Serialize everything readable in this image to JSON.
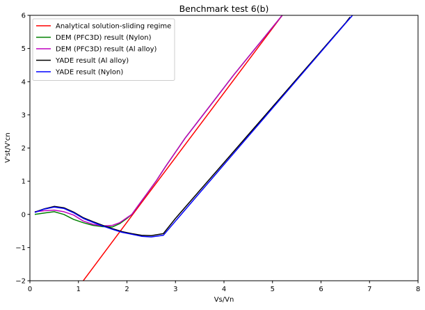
{
  "chart_data": {
    "type": "line",
    "title": "Benchmark test 6(b)",
    "xlabel": "Vs/Vn",
    "ylabel": "V'st/V'cn",
    "xlim": [
      0,
      8
    ],
    "ylim": [
      -2,
      6
    ],
    "xticks": [
      0,
      1,
      2,
      3,
      4,
      5,
      6,
      7,
      8
    ],
    "yticks": [
      -2,
      -1,
      0,
      1,
      2,
      3,
      4,
      5,
      6
    ],
    "grid": false,
    "legend_position": "top-left",
    "series": [
      {
        "name": "Analytical solution-sliding regime",
        "color": "#ff0000",
        "x": [
          1.1,
          2.3,
          5.2
        ],
        "y": [
          -2.0,
          0.35,
          6.0
        ]
      },
      {
        "name": "DEM (PFC3D) result (Nylon)",
        "color": "#008000",
        "x": [
          0.1,
          0.3,
          0.5,
          0.7,
          0.9,
          1.1,
          1.3,
          1.5,
          1.7,
          1.85,
          2.0,
          2.1,
          2.25,
          2.4,
          2.6,
          2.8,
          3.2,
          3.7,
          4.2,
          4.7,
          5.2
        ],
        "y": [
          0.0,
          0.04,
          0.08,
          0.0,
          -0.15,
          -0.25,
          -0.33,
          -0.37,
          -0.38,
          -0.28,
          -0.12,
          0.0,
          0.3,
          0.6,
          1.0,
          1.45,
          2.3,
          3.25,
          4.2,
          5.1,
          6.0
        ]
      },
      {
        "name": "DEM (PFC3D) result (Al alloy)",
        "color": "#bf00bf",
        "x": [
          0.1,
          0.3,
          0.5,
          0.7,
          0.9,
          1.1,
          1.3,
          1.5,
          1.7,
          1.85,
          2.0,
          2.1,
          2.25,
          2.4,
          2.6,
          2.8,
          3.2,
          3.7,
          4.2,
          4.7,
          5.2
        ],
        "y": [
          0.08,
          0.11,
          0.13,
          0.08,
          -0.02,
          -0.2,
          -0.3,
          -0.35,
          -0.33,
          -0.25,
          -0.1,
          0.0,
          0.3,
          0.6,
          1.0,
          1.45,
          2.3,
          3.25,
          4.2,
          5.1,
          6.0
        ]
      },
      {
        "name": "YADE result (Al alloy)",
        "color": "#000000",
        "x": [
          0.1,
          0.3,
          0.5,
          0.7,
          0.9,
          1.1,
          1.3,
          1.5,
          1.7,
          1.9,
          2.1,
          2.3,
          2.5,
          2.75,
          3.0,
          3.5,
          4.0,
          4.5,
          5.0,
          5.5,
          6.0,
          6.5,
          6.6
        ],
        "y": [
          0.07,
          0.17,
          0.24,
          0.2,
          0.07,
          -0.1,
          -0.22,
          -0.33,
          -0.43,
          -0.52,
          -0.58,
          -0.63,
          -0.64,
          -0.58,
          -0.12,
          0.72,
          1.56,
          2.4,
          3.24,
          4.08,
          4.92,
          5.76,
          5.95
        ]
      },
      {
        "name": "YADE result (Nylon)",
        "color": "#0000ff",
        "x": [
          0.1,
          0.3,
          0.5,
          0.7,
          0.9,
          1.1,
          1.3,
          1.5,
          1.7,
          1.9,
          2.1,
          2.3,
          2.5,
          2.75,
          3.0,
          3.5,
          4.0,
          4.5,
          5.0,
          5.5,
          6.0,
          6.5,
          6.65
        ],
        "y": [
          0.06,
          0.16,
          0.22,
          0.18,
          0.05,
          -0.12,
          -0.24,
          -0.35,
          -0.45,
          -0.54,
          -0.6,
          -0.66,
          -0.68,
          -0.63,
          -0.2,
          0.65,
          1.5,
          2.35,
          3.2,
          4.05,
          4.9,
          5.75,
          6.0
        ]
      }
    ]
  }
}
